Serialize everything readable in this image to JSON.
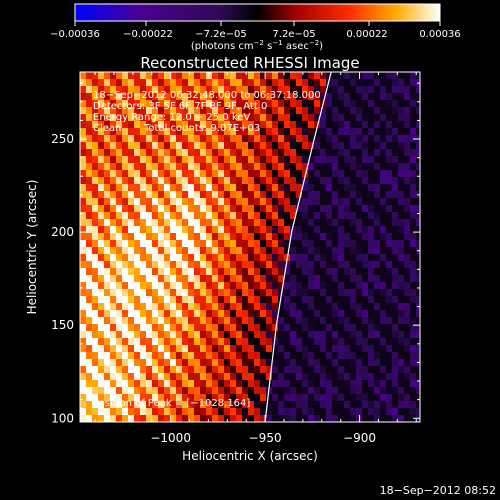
{
  "chart_data": {
    "type": "heatmap",
    "title": "Reconstructed RHESSI Image",
    "xlabel": "Heliocentric X (arcsec)",
    "ylabel": "Heliocentric Y (arcsec)",
    "xlim": [
      -1048,
      -868
    ],
    "ylim": [
      98,
      286
    ],
    "x_ticks": [
      -1000,
      -950,
      -900
    ],
    "x_tick_labels": [
      "−1000",
      "−950",
      "−900"
    ],
    "y_ticks": [
      100,
      150,
      200,
      250
    ],
    "y_tick_labels": [
      "100",
      "150",
      "200",
      "250"
    ],
    "colorbar": {
      "range": [
        -0.00036,
        0.00036
      ],
      "ticks": [
        -0.00036,
        -0.00022,
        -7.2e-05,
        7.2e-05,
        0.00022,
        0.00036
      ],
      "tick_labels": [
        "−0.00036",
        "−0.00022",
        "−7.2e−05",
        "7.2e−05",
        "0.00022",
        "0.00036"
      ],
      "units_label": "(photons cm",
      "units_sup1": "−2",
      "units_mid": " s",
      "units_sup2": "−1",
      "units_end": " asec",
      "units_sup3": "−2",
      "units_close": ")",
      "colors": [
        "#0000ff",
        "#4b008e",
        "#2d0a55",
        "#000000",
        "#9e0000",
        "#ff2b00",
        "#ffac00",
        "#ffffff"
      ]
    },
    "annotations": {
      "time_range": "18−Sep−2012 06:32:48.000 to 06:37:18.000",
      "detectors": "Detectors: 3F 5F 6F 7F 8F 9F, Att 0",
      "energy": "Energy Range: 12.0 − 25.0 keV",
      "clean": "Clean",
      "total_counts": "Total counts: 9.07E+03",
      "peak": "Position of Peak = [−1028,164]"
    },
    "peak_position": [
      -1028,
      164
    ],
    "limb_curve": [
      [
        -950,
        98
      ],
      [
        -944,
        150
      ],
      [
        -936,
        200
      ],
      [
        -924,
        250
      ],
      [
        -915,
        286
      ]
    ],
    "footer_timestamp": "18−Sep−2012 08:52",
    "grid": false
  }
}
